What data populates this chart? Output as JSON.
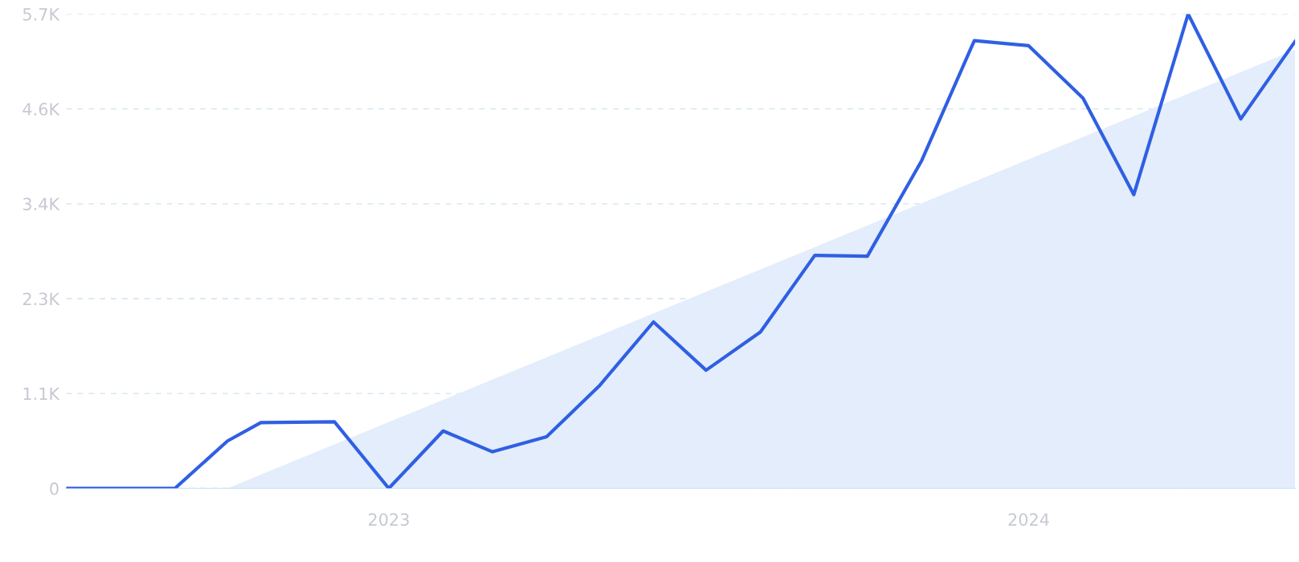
{
  "chart_data": {
    "type": "line",
    "series": [
      {
        "type": "area",
        "color": "#e3edfb",
        "x": [
          "2022-10-01",
          "2024-06-01"
        ],
        "values": [
          0,
          5270
        ]
      },
      {
        "color": "#2f5fe3",
        "x": [
          "2022-07-01",
          "2022-09-01",
          "2022-10-01",
          "2022-10-20",
          "2022-12-01",
          "2023-01-01",
          "2023-02-01",
          "2023-03-01",
          "2023-04-01",
          "2023-05-01",
          "2023-06-01",
          "2023-07-01",
          "2023-08-01",
          "2023-09-01",
          "2023-10-01",
          "2023-11-01",
          "2023-12-01",
          "2024-01-01",
          "2024-02-01",
          "2024-03-01",
          "2024-04-01",
          "2024-05-01",
          "2024-06-01"
        ],
        "values": [
          0,
          0,
          570,
          790,
          800,
          0,
          690,
          440,
          620,
          1230,
          2000,
          1420,
          1880,
          2800,
          2790,
          3940,
          5380,
          5320,
          4690,
          3530,
          5700,
          4440,
          5370
        ]
      }
    ],
    "xlim": [
      "2022-07-01",
      "2024-06-01"
    ],
    "xticks": [
      {
        "value": "2023-01-01",
        "label": "2023"
      },
      {
        "value": "2024-01-01",
        "label": "2024"
      }
    ],
    "ylim": [
      0,
      5700
    ],
    "yticks": [
      0,
      {
        "value": 1140,
        "label": "1.1K"
      },
      {
        "value": 2280,
        "label": "2.3K"
      },
      {
        "value": 3420,
        "label": "3.4K"
      },
      {
        "value": 4560,
        "label": "4.6K"
      },
      {
        "value": 5700,
        "label": "5.7K"
      }
    ],
    "grid": "y",
    "line_style": "solid",
    "marker": "none"
  }
}
